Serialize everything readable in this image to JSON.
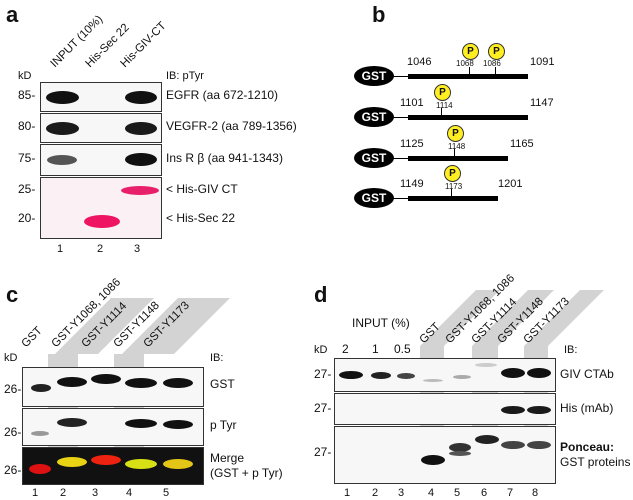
{
  "panel_a": {
    "label": "a",
    "lanes": [
      "INPUT (10%)",
      "His-Sec 22",
      "His-GIV-CT"
    ],
    "kd": "kD",
    "ib": "IB: pTyr",
    "blots": [
      {
        "mw": "85-",
        "label": "EGFR (aa 672-1210)"
      },
      {
        "mw": "80-",
        "label": "VEGFR-2 (aa 789-1356)"
      },
      {
        "mw": "75-",
        "label": "Ins R β (aa 941-1343)"
      }
    ],
    "ponceau_mw": [
      "25-",
      "20-"
    ],
    "ponceau_labels": [
      "< His-GIV CT",
      "< His-Sec 22"
    ],
    "lane_numbers": [
      "1",
      "2",
      "3"
    ]
  },
  "panel_b": {
    "label": "b",
    "gst": "GST",
    "p": "P",
    "constructs": [
      {
        "start": "1046",
        "end": "1091",
        "sites": [
          "1068",
          "1086"
        ]
      },
      {
        "start": "1101",
        "end": "1147",
        "sites": [
          "1114"
        ]
      },
      {
        "start": "1125",
        "end": "1165",
        "sites": [
          "1148"
        ]
      },
      {
        "start": "1149",
        "end": "1201",
        "sites": [
          "1173"
        ]
      }
    ]
  },
  "panel_c": {
    "label": "c",
    "lanes": [
      "GST",
      "GST-Y1068, 1086",
      "GST-Y1114",
      "GST-Y1148",
      "GST-Y1173"
    ],
    "kd": "kD",
    "ib": "IB:",
    "mw": [
      "26-",
      "26-",
      "26-"
    ],
    "blots": [
      "GST",
      "p Tyr",
      "Merge",
      "(GST + p Tyr)"
    ],
    "lane_numbers": [
      "1",
      "2",
      "3",
      "4",
      "5"
    ]
  },
  "panel_d": {
    "label": "d",
    "input": "INPUT (%)",
    "input_levels": [
      "2",
      "1",
      "0.5"
    ],
    "lanes": [
      "GST",
      "GST-Y1068, 1086",
      "GST-Y1114",
      "GST-Y1148",
      "GST-Y1173"
    ],
    "kd": "kD",
    "ib": "IB:",
    "mw": [
      "27-",
      "27-",
      "27-"
    ],
    "blots": [
      "GIV CTAb",
      "His (mAb)",
      "Ponceau:",
      "GST proteins"
    ],
    "lane_numbers": [
      "1",
      "2",
      "3",
      "4",
      "5",
      "6",
      "7",
      "8"
    ]
  }
}
